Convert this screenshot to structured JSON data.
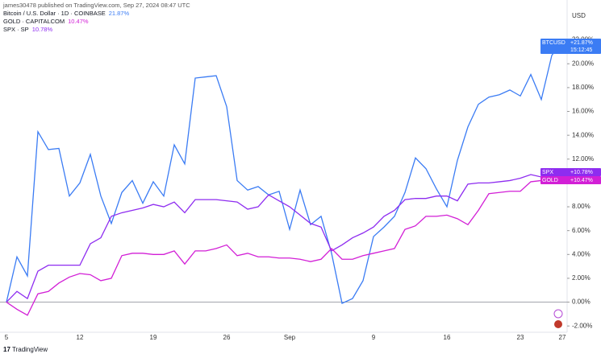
{
  "chart_data": {
    "type": "line",
    "header": "james30478 published on TradingView.com, Sep 27, 2024 08:47 UTC",
    "currency": "USD",
    "footer": "TradingView",
    "categories": [
      "5",
      null,
      null,
      null,
      null,
      null,
      null,
      "12",
      null,
      null,
      null,
      null,
      null,
      null,
      "19",
      null,
      null,
      null,
      null,
      null,
      null,
      "26",
      null,
      null,
      null,
      null,
      null,
      "Sep",
      null,
      null,
      null,
      null,
      null,
      null,
      null,
      "9",
      null,
      null,
      null,
      null,
      null,
      null,
      "16",
      null,
      null,
      null,
      null,
      null,
      null,
      "23",
      null,
      null,
      null,
      "27"
    ],
    "series": [
      {
        "name": "Bitcoin / U.S. Dollar · 1D · COINBASE",
        "change": "21.87%",
        "symbol": "BTCUSD",
        "last_label": "+21.87%",
        "countdown": "15:12:45",
        "color": "#3b7cf4",
        "values": [
          0,
          3.8,
          2.2,
          14.3,
          12.8,
          12.9,
          8.9,
          10.0,
          12.4,
          8.9,
          6.6,
          9.2,
          10.2,
          8.3,
          10.1,
          8.9,
          13.2,
          11.6,
          18.8,
          18.9,
          19.0,
          16.4,
          10.2,
          9.4,
          9.7,
          9.0,
          9.3,
          6.1,
          9.4,
          6.5,
          7.2,
          4.1,
          -0.1,
          0.3,
          1.8,
          5.5,
          6.3,
          7.2,
          9.2,
          12.1,
          11.2,
          9.5,
          8.0,
          11.9,
          14.7,
          16.6,
          17.2,
          17.4,
          17.8,
          17.3,
          19.1,
          17.0,
          20.7,
          21.87
        ]
      },
      {
        "name": "GOLD · CAPITALCOM",
        "change": "10.47%",
        "symbol": "GOLD",
        "last_label": "+10.47%",
        "color": "#d21fd6",
        "values": [
          0,
          -0.6,
          -1.1,
          0.7,
          0.9,
          1.6,
          2.1,
          2.4,
          2.3,
          1.8,
          2.0,
          3.9,
          4.1,
          4.1,
          4.0,
          4.0,
          4.3,
          3.2,
          4.3,
          4.3,
          4.5,
          4.8,
          3.9,
          4.1,
          3.8,
          3.8,
          3.7,
          3.7,
          3.6,
          3.4,
          3.6,
          4.5,
          3.6,
          3.6,
          3.9,
          4.1,
          4.3,
          4.5,
          6.1,
          6.4,
          7.2,
          7.2,
          7.3,
          7.0,
          6.5,
          7.7,
          9.1,
          9.2,
          9.3,
          9.3,
          10.1,
          10.2,
          10.4,
          10.47
        ]
      },
      {
        "name": "SPX · SP",
        "change": "10.78%",
        "symbol": "SPX",
        "last_label": "+10.78%",
        "color": "#8e2cf0",
        "values": [
          0,
          0.9,
          0.3,
          2.6,
          3.1,
          3.1,
          3.1,
          3.1,
          4.9,
          5.4,
          7.2,
          7.5,
          7.7,
          7.9,
          8.2,
          8.0,
          8.4,
          7.5,
          8.6,
          8.6,
          8.6,
          8.5,
          8.4,
          7.8,
          8.0,
          9.0,
          8.5,
          8.0,
          7.3,
          6.6,
          6.3,
          4.3,
          4.8,
          5.4,
          5.8,
          6.3,
          7.2,
          7.7,
          8.6,
          8.7,
          8.7,
          8.9,
          8.9,
          8.5,
          9.9,
          10.0,
          10.0,
          10.1,
          10.2,
          10.4,
          10.7,
          10.5,
          10.8,
          10.78
        ]
      }
    ],
    "ylim": [
      -3,
      24
    ],
    "yticks": [
      {
        "value": -2,
        "label": "-2.00%"
      },
      {
        "value": 0,
        "label": "0.00%"
      },
      {
        "value": 2,
        "label": "2.00%"
      },
      {
        "value": 4,
        "label": "4.00%"
      },
      {
        "value": 6,
        "label": "6.00%"
      },
      {
        "value": 8,
        "label": "8.00%"
      },
      {
        "value": 12,
        "label": "12.00%"
      },
      {
        "value": 14,
        "label": "14.00%"
      },
      {
        "value": 16,
        "label": "16.00%"
      },
      {
        "value": 18,
        "label": "18.00%"
      },
      {
        "value": 20,
        "label": "20.00%"
      },
      {
        "value": 22,
        "label": "22.00%"
      }
    ]
  }
}
